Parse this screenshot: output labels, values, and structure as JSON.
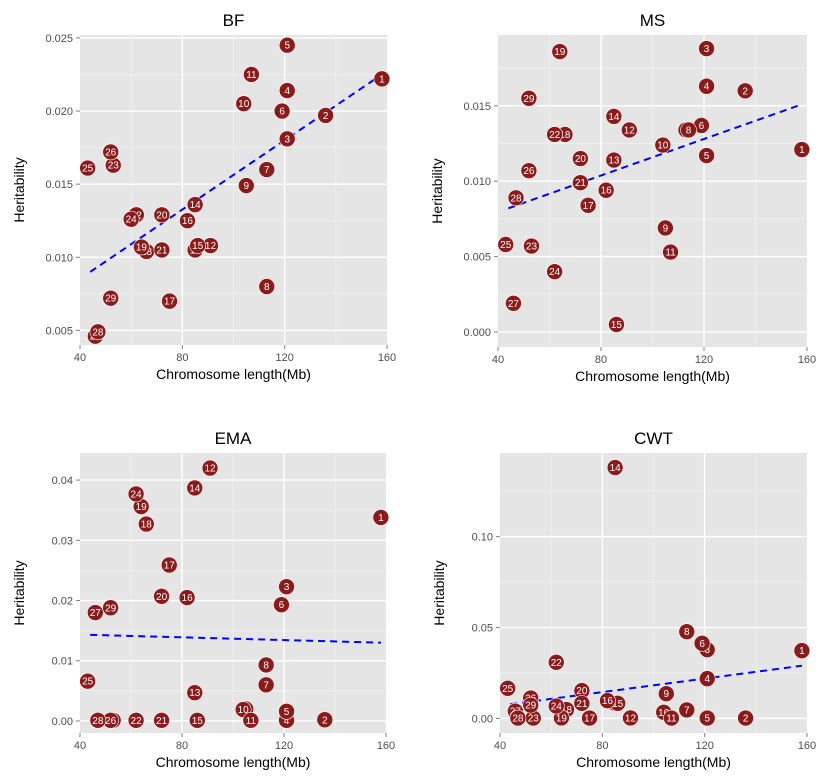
{
  "colors": {
    "panel_bg": "#e5e5e5",
    "point": "#8b1a1a",
    "trend": "#0000ff"
  },
  "chart_data": [
    {
      "type": "scatter",
      "title": "BF",
      "xlabel": "Chromosome length(Mb)",
      "ylabel": "Heritability",
      "xlim": [
        40,
        160
      ],
      "ylim": [
        0.004,
        0.0252
      ],
      "xticks": [
        40,
        80,
        120,
        160
      ],
      "yticks": [
        0.005,
        0.01,
        0.015,
        0.02,
        0.025
      ],
      "ytick_labels": [
        "0.005",
        "0.010",
        "0.015",
        "0.020",
        "0.025"
      ],
      "grid": true,
      "trend_line": {
        "x": [
          44,
          158
        ],
        "y": [
          0.009,
          0.0225
        ]
      },
      "points": [
        {
          "label": "1",
          "x": 158,
          "y": 0.0222
        },
        {
          "label": "2",
          "x": 136,
          "y": 0.0197
        },
        {
          "label": "3",
          "x": 121,
          "y": 0.0181
        },
        {
          "label": "4",
          "x": 121,
          "y": 0.0214
        },
        {
          "label": "5",
          "x": 121,
          "y": 0.0245
        },
        {
          "label": "6",
          "x": 119,
          "y": 0.02
        },
        {
          "label": "7",
          "x": 113,
          "y": 0.016
        },
        {
          "label": "8",
          "x": 113,
          "y": 0.008
        },
        {
          "label": "9",
          "x": 105,
          "y": 0.0149
        },
        {
          "label": "10",
          "x": 104,
          "y": 0.0205
        },
        {
          "label": "11",
          "x": 107,
          "y": 0.0225
        },
        {
          "label": "12",
          "x": 91,
          "y": 0.0108
        },
        {
          "label": "13",
          "x": 85,
          "y": 0.0105
        },
        {
          "label": "14",
          "x": 85,
          "y": 0.0136
        },
        {
          "label": "15",
          "x": 86,
          "y": 0.0108
        },
        {
          "label": "16",
          "x": 82,
          "y": 0.0125
        },
        {
          "label": "17",
          "x": 75,
          "y": 0.007
        },
        {
          "label": "18",
          "x": 66,
          "y": 0.0104
        },
        {
          "label": "19",
          "x": 64,
          "y": 0.0107
        },
        {
          "label": "20",
          "x": 72,
          "y": 0.0129
        },
        {
          "label": "21",
          "x": 72,
          "y": 0.0105
        },
        {
          "label": "22",
          "x": 62,
          "y": 0.0129
        },
        {
          "label": "24",
          "x": 60,
          "y": 0.0126
        },
        {
          "label": "23",
          "x": 53,
          "y": 0.0163
        },
        {
          "label": "25",
          "x": 43,
          "y": 0.0161
        },
        {
          "label": "26",
          "x": 52,
          "y": 0.0172
        },
        {
          "label": "27",
          "x": 46,
          "y": 0.0046
        },
        {
          "label": "28",
          "x": 47,
          "y": 0.0049
        },
        {
          "label": "29",
          "x": 52,
          "y": 0.0072
        }
      ]
    },
    {
      "type": "scatter",
      "title": "MS",
      "xlabel": "Chromosome length(Mb)",
      "ylabel": "Heritability",
      "xlim": [
        40,
        160
      ],
      "ylim": [
        -0.001,
        0.0197
      ],
      "xticks": [
        40,
        80,
        120,
        160
      ],
      "yticks": [
        0.0,
        0.005,
        0.01,
        0.015
      ],
      "ytick_labels": [
        "0.000",
        "0.005",
        "0.010",
        "0.015"
      ],
      "grid": true,
      "trend_line": {
        "x": [
          44,
          158
        ],
        "y": [
          0.0082,
          0.0151
        ]
      },
      "points": [
        {
          "label": "1",
          "x": 158,
          "y": 0.0121
        },
        {
          "label": "2",
          "x": 136,
          "y": 0.016
        },
        {
          "label": "3",
          "x": 121,
          "y": 0.0188
        },
        {
          "label": "4",
          "x": 121,
          "y": 0.0163
        },
        {
          "label": "5",
          "x": 121,
          "y": 0.0117
        },
        {
          "label": "6",
          "x": 119,
          "y": 0.0137
        },
        {
          "label": "7",
          "x": 113,
          "y": 0.0134
        },
        {
          "label": "8",
          "x": 114,
          "y": 0.0134
        },
        {
          "label": "9",
          "x": 105,
          "y": 0.0069
        },
        {
          "label": "10",
          "x": 104,
          "y": 0.0124
        },
        {
          "label": "11",
          "x": 107,
          "y": 0.0053
        },
        {
          "label": "12",
          "x": 91,
          "y": 0.0134
        },
        {
          "label": "13",
          "x": 85,
          "y": 0.0114
        },
        {
          "label": "14",
          "x": 85,
          "y": 0.0143
        },
        {
          "label": "15",
          "x": 86,
          "y": 0.0005
        },
        {
          "label": "16",
          "x": 82,
          "y": 0.0094
        },
        {
          "label": "17",
          "x": 75,
          "y": 0.0084
        },
        {
          "label": "18",
          "x": 66,
          "y": 0.0131
        },
        {
          "label": "19",
          "x": 64,
          "y": 0.0186
        },
        {
          "label": "20",
          "x": 72,
          "y": 0.0115
        },
        {
          "label": "21",
          "x": 72,
          "y": 0.0099
        },
        {
          "label": "22",
          "x": 62,
          "y": 0.0131
        },
        {
          "label": "23",
          "x": 53,
          "y": 0.0057
        },
        {
          "label": "24",
          "x": 62,
          "y": 0.004
        },
        {
          "label": "25",
          "x": 43,
          "y": 0.0058
        },
        {
          "label": "26",
          "x": 52,
          "y": 0.0107
        },
        {
          "label": "27",
          "x": 46,
          "y": 0.0019
        },
        {
          "label": "28",
          "x": 47,
          "y": 0.0089
        },
        {
          "label": "29",
          "x": 52,
          "y": 0.0155
        }
      ]
    },
    {
      "type": "scatter",
      "title": "EMA",
      "xlabel": "Chromosome length(Mb)",
      "ylabel": "Heritability",
      "xlim": [
        40,
        160
      ],
      "ylim": [
        -0.002,
        0.0445
      ],
      "xticks": [
        40,
        80,
        120,
        160
      ],
      "yticks": [
        0.0,
        0.01,
        0.02,
        0.03,
        0.04
      ],
      "ytick_labels": [
        "0.00",
        "0.01",
        "0.02",
        "0.03",
        "0.04"
      ],
      "grid": true,
      "trend_line": {
        "x": [
          44,
          158
        ],
        "y": [
          0.0143,
          0.013
        ]
      },
      "points": [
        {
          "label": "1",
          "x": 158,
          "y": 0.0338
        },
        {
          "label": "2",
          "x": 136,
          "y": 0.0002
        },
        {
          "label": "3",
          "x": 121,
          "y": 0.0223
        },
        {
          "label": "4",
          "x": 121,
          "y": 0.0001
        },
        {
          "label": "5",
          "x": 121,
          "y": 0.0016
        },
        {
          "label": "6",
          "x": 119,
          "y": 0.0193
        },
        {
          "label": "7",
          "x": 113,
          "y": 0.006
        },
        {
          "label": "8",
          "x": 113,
          "y": 0.0093
        },
        {
          "label": "9",
          "x": 105,
          "y": 0.002
        },
        {
          "label": "10",
          "x": 104,
          "y": 0.0019
        },
        {
          "label": "11",
          "x": 107,
          "y": 0.0001
        },
        {
          "label": "12",
          "x": 91,
          "y": 0.042
        },
        {
          "label": "13",
          "x": 85,
          "y": 0.0047
        },
        {
          "label": "14",
          "x": 85,
          "y": 0.0387
        },
        {
          "label": "15",
          "x": 86,
          "y": 0.0001
        },
        {
          "label": "16",
          "x": 82,
          "y": 0.0205
        },
        {
          "label": "17",
          "x": 75,
          "y": 0.0259
        },
        {
          "label": "18",
          "x": 66,
          "y": 0.0327
        },
        {
          "label": "19",
          "x": 64,
          "y": 0.0356
        },
        {
          "label": "20",
          "x": 72,
          "y": 0.0207
        },
        {
          "label": "21",
          "x": 72,
          "y": 0.0001
        },
        {
          "label": "22",
          "x": 62,
          "y": 0.0001
        },
        {
          "label": "23",
          "x": 53,
          "y": 0.0001
        },
        {
          "label": "24",
          "x": 62,
          "y": 0.0377
        },
        {
          "label": "25",
          "x": 43,
          "y": 0.0066
        },
        {
          "label": "26",
          "x": 52,
          "y": 0.0001
        },
        {
          "label": "27",
          "x": 46,
          "y": 0.018
        },
        {
          "label": "28",
          "x": 47,
          "y": 0.0001
        },
        {
          "label": "29",
          "x": 52,
          "y": 0.0188
        }
      ]
    },
    {
      "type": "scatter",
      "title": "CWT",
      "xlabel": "Chromosome length(Mb)",
      "ylabel": "Heritability",
      "xlim": [
        40,
        160
      ],
      "ylim": [
        -0.008,
        0.146
      ],
      "xticks": [
        40,
        80,
        120,
        160
      ],
      "yticks": [
        0.0,
        0.05,
        0.1
      ],
      "ytick_labels": [
        "0.00",
        "0.05",
        "0.10"
      ],
      "grid": true,
      "trend_line": {
        "x": [
          44,
          158
        ],
        "y": [
          0.0078,
          0.029
        ]
      },
      "points": [
        {
          "label": "1",
          "x": 158,
          "y": 0.0373
        },
        {
          "label": "2",
          "x": 136,
          "y": 0.0002
        },
        {
          "label": "3",
          "x": 121,
          "y": 0.0378
        },
        {
          "label": "4",
          "x": 121,
          "y": 0.0219
        },
        {
          "label": "5",
          "x": 121,
          "y": 0.0002
        },
        {
          "label": "6",
          "x": 119,
          "y": 0.0413
        },
        {
          "label": "7",
          "x": 113,
          "y": 0.0047
        },
        {
          "label": "8",
          "x": 113,
          "y": 0.0477
        },
        {
          "label": "9",
          "x": 105,
          "y": 0.0136
        },
        {
          "label": "10",
          "x": 104,
          "y": 0.0034
        },
        {
          "label": "11",
          "x": 107,
          "y": 0.0002
        },
        {
          "label": "12",
          "x": 91,
          "y": 0.0003
        },
        {
          "label": "13",
          "x": 85,
          "y": 0.0083
        },
        {
          "label": "14",
          "x": 85,
          "y": 0.138
        },
        {
          "label": "15",
          "x": 86,
          "y": 0.0083
        },
        {
          "label": "16",
          "x": 82,
          "y": 0.0098
        },
        {
          "label": "17",
          "x": 75,
          "y": 0.0002
        },
        {
          "label": "18",
          "x": 66,
          "y": 0.0049
        },
        {
          "label": "19",
          "x": 64,
          "y": 0.0003
        },
        {
          "label": "20",
          "x": 72,
          "y": 0.0153
        },
        {
          "label": "21",
          "x": 72,
          "y": 0.0083
        },
        {
          "label": "22",
          "x": 62,
          "y": 0.0309
        },
        {
          "label": "23",
          "x": 53,
          "y": 0.0002
        },
        {
          "label": "24",
          "x": 62,
          "y": 0.0068
        },
        {
          "label": "25",
          "x": 43,
          "y": 0.0166
        },
        {
          "label": "26",
          "x": 52,
          "y": 0.0112
        },
        {
          "label": "27",
          "x": 46,
          "y": 0.004
        },
        {
          "label": "28",
          "x": 47,
          "y": 0.0002
        },
        {
          "label": "29",
          "x": 52,
          "y": 0.0073
        }
      ]
    }
  ]
}
